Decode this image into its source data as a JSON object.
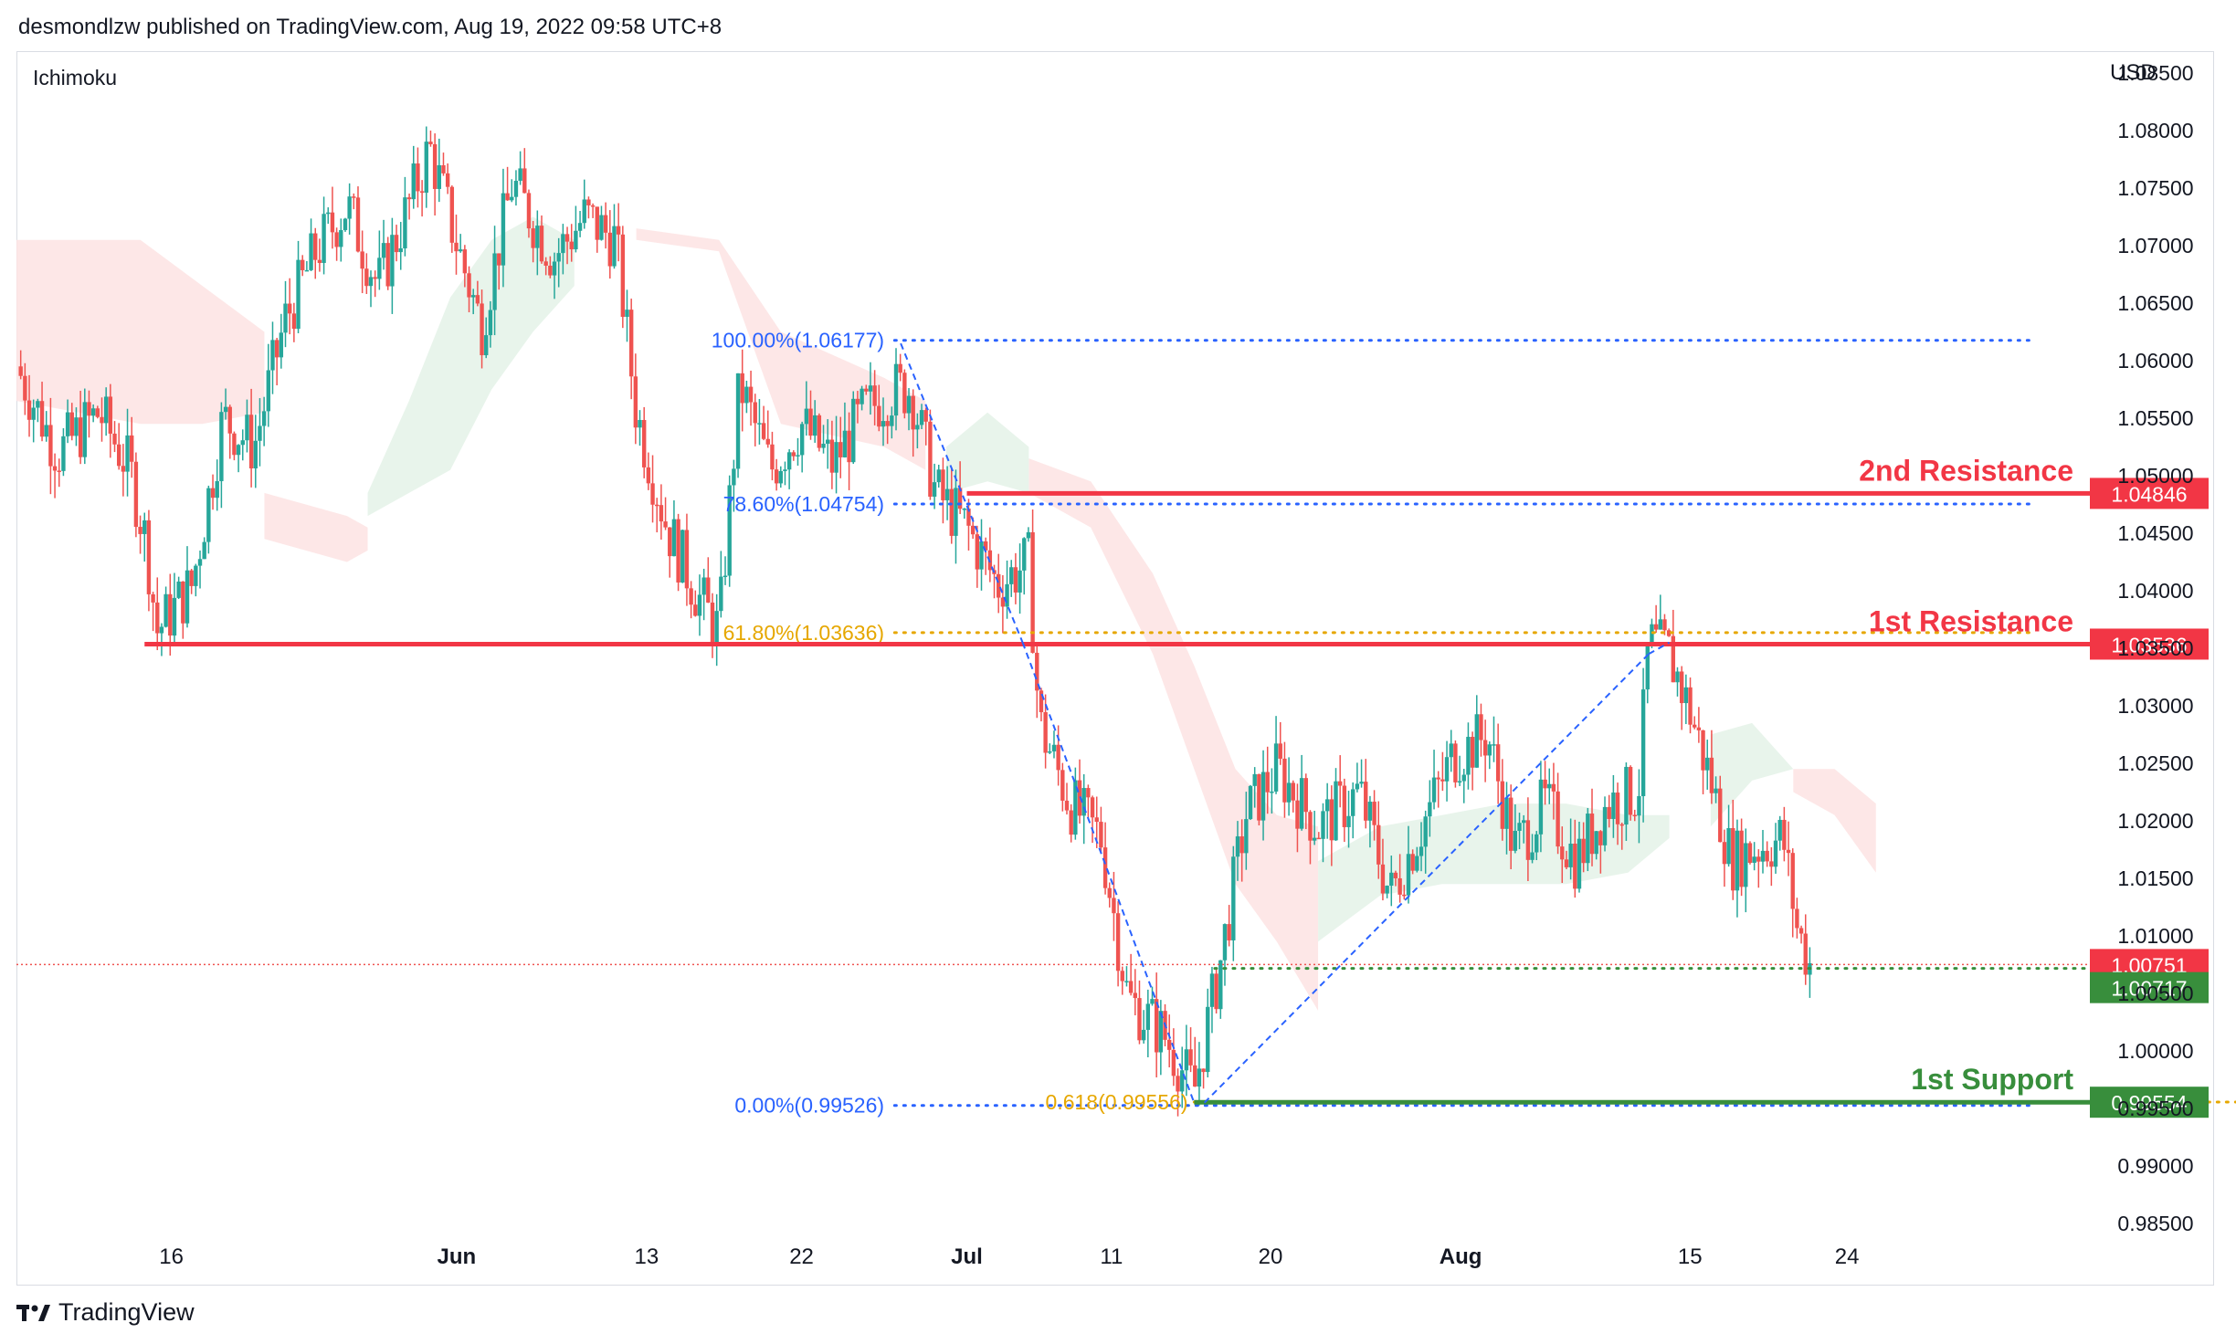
{
  "header": {
    "text": "desmondlzw published on TradingView.com, Aug 19, 2022 09:58 UTC+8"
  },
  "chart": {
    "indicator": "Ichimoku",
    "currency": "USD"
  },
  "footer": {
    "brand": "TradingView"
  },
  "colors": {
    "bull": "#26a69a",
    "bear": "#ef5350",
    "resistance": "#f23645",
    "support": "#388e3c",
    "fib_blue": "#2962ff",
    "fib_gold": "#e6a700",
    "cloud_bear": "#fde3e3",
    "cloud_bull": "#e4f2e7"
  },
  "chart_data": {
    "type": "candlestick",
    "symbol_note": "",
    "y_axis": {
      "ticks": [
        "1.08500",
        "1.08000",
        "1.07500",
        "1.07000",
        "1.06500",
        "1.06000",
        "1.05500",
        "1.05000",
        "1.04500",
        "1.04000",
        "1.03500",
        "1.03000",
        "1.02500",
        "1.02000",
        "1.01500",
        "1.01000",
        "1.00500",
        "1.00000",
        "0.99500",
        "0.99000",
        "0.98500"
      ],
      "range": [
        0.985,
        1.085
      ]
    },
    "x_axis": {
      "ticks": [
        {
          "label": "16",
          "bold": false,
          "pos": 0.075
        },
        {
          "label": "Jun",
          "bold": true,
          "pos": 0.213
        },
        {
          "label": "13",
          "bold": false,
          "pos": 0.305
        },
        {
          "label": "22",
          "bold": false,
          "pos": 0.38
        },
        {
          "label": "Jul",
          "bold": true,
          "pos": 0.46
        },
        {
          "label": "11",
          "bold": false,
          "pos": 0.53
        },
        {
          "label": "20",
          "bold": false,
          "pos": 0.607
        },
        {
          "label": "Aug",
          "bold": true,
          "pos": 0.699
        },
        {
          "label": "15",
          "bold": false,
          "pos": 0.81
        },
        {
          "label": "24",
          "bold": false,
          "pos": 0.886
        }
      ]
    },
    "price_path": [
      [
        0,
        1.0595
      ],
      [
        0.02,
        1.052
      ],
      [
        0.04,
        1.0555
      ],
      [
        0.055,
        1.0505
      ],
      [
        0.063,
        1.044
      ],
      [
        0.068,
        1.0365
      ],
      [
        0.085,
        1.0405
      ],
      [
        0.1,
        1.055
      ],
      [
        0.115,
        1.0525
      ],
      [
        0.13,
        1.0635
      ],
      [
        0.145,
        1.0695
      ],
      [
        0.16,
        1.0735
      ],
      [
        0.175,
        1.0665
      ],
      [
        0.19,
        1.0735
      ],
      [
        0.2,
        1.0785
      ],
      [
        0.215,
        1.069
      ],
      [
        0.225,
        1.063
      ],
      [
        0.24,
        1.0755
      ],
      [
        0.26,
        1.069
      ],
      [
        0.275,
        1.0725
      ],
      [
        0.29,
        1.0705
      ],
      [
        0.3,
        1.0555
      ],
      [
        0.315,
        1.0455
      ],
      [
        0.33,
        1.0395
      ],
      [
        0.34,
        1.0365
      ],
      [
        0.35,
        1.058
      ],
      [
        0.365,
        1.0505
      ],
      [
        0.38,
        1.0545
      ],
      [
        0.395,
        1.051
      ],
      [
        0.41,
        1.0555
      ],
      [
        0.425,
        1.0575
      ],
      [
        0.433,
        1.0575
      ],
      [
        0.445,
        1.0485
      ],
      [
        0.46,
        1.0455
      ],
      [
        0.475,
        1.0405
      ],
      [
        0.49,
        1.0425
      ],
      [
        0.495,
        1.0285
      ],
      [
        0.51,
        1.0215
      ],
      [
        0.525,
        1.0185
      ],
      [
        0.538,
        1.0045
      ],
      [
        0.555,
        1.0015
      ],
      [
        0.57,
        0.9965
      ],
      [
        0.583,
        1.008
      ],
      [
        0.595,
        1.0205
      ],
      [
        0.61,
        1.0245
      ],
      [
        0.63,
        1.0195
      ],
      [
        0.65,
        1.0225
      ],
      [
        0.665,
        1.0135
      ],
      [
        0.68,
        1.0195
      ],
      [
        0.695,
        1.0255
      ],
      [
        0.712,
        1.0275
      ],
      [
        0.725,
        1.0175
      ],
      [
        0.74,
        1.0215
      ],
      [
        0.755,
        1.0165
      ],
      [
        0.77,
        1.0215
      ],
      [
        0.785,
        1.0225
      ],
      [
        0.79,
        1.0355
      ],
      [
        0.8,
        1.0345
      ],
      [
        0.81,
        1.0295
      ],
      [
        0.82,
        1.0235
      ],
      [
        0.83,
        1.0165
      ],
      [
        0.84,
        1.0175
      ],
      [
        0.855,
        1.0185
      ],
      [
        0.862,
        1.0105
      ],
      [
        0.868,
        1.0075
      ]
    ],
    "cloud": {
      "bearish_segments": [
        {
          "x": [
            0,
            0.06,
            0.09,
            0.12
          ],
          "top": [
            1.0705,
            1.0705,
            1.0665,
            1.0625
          ],
          "bottom": [
            1.0565,
            1.0545,
            1.0545,
            1.0555
          ]
        },
        {
          "x": [
            0.12,
            0.16,
            0.17
          ],
          "top": [
            1.0485,
            1.0465,
            1.0455
          ],
          "bottom": [
            1.0445,
            1.0425,
            1.0435
          ]
        },
        {
          "x": [
            0.3,
            0.34,
            0.37,
            0.42,
            0.44
          ],
          "top": [
            1.0715,
            1.0705,
            1.0625,
            1.0585,
            1.0565
          ],
          "bottom": [
            1.0705,
            1.0695,
            1.0545,
            1.0525,
            1.0505
          ]
        },
        {
          "x": [
            0.49,
            0.52,
            0.55,
            0.57,
            0.59,
            0.61,
            0.63
          ],
          "top": [
            1.0515,
            1.0495,
            1.0415,
            1.0335,
            1.0245,
            1.0205,
            1.0195
          ],
          "bottom": [
            1.0485,
            1.0455,
            1.0345,
            1.0245,
            1.0145,
            1.0095,
            1.0035
          ]
        },
        {
          "x": [
            0.86,
            0.88,
            0.9
          ],
          "top": [
            1.0245,
            1.0245,
            1.0215
          ],
          "bottom": [
            1.0225,
            1.0205,
            1.0155
          ]
        }
      ],
      "bullish_segments": [
        {
          "x": [
            0.17,
            0.19,
            0.21,
            0.23,
            0.25,
            0.27
          ],
          "top": [
            1.0485,
            1.0565,
            1.0655,
            1.0705,
            1.0725,
            1.0705
          ],
          "bottom": [
            1.0465,
            1.0485,
            1.0505,
            1.0575,
            1.0625,
            1.0665
          ]
        },
        {
          "x": [
            0.45,
            0.47,
            0.49
          ],
          "top": [
            1.0525,
            1.0555,
            1.0525
          ],
          "bottom": [
            1.0485,
            1.0495,
            1.0485
          ]
        },
        {
          "x": [
            0.63,
            0.66,
            0.69,
            0.72,
            0.75,
            0.78,
            0.8
          ],
          "top": [
            1.0165,
            1.0195,
            1.0205,
            1.0215,
            1.0215,
            1.0205,
            1.0205
          ],
          "bottom": [
            1.0095,
            1.0135,
            1.0145,
            1.0145,
            1.0145,
            1.0155,
            1.0185
          ]
        },
        {
          "x": [
            0.82,
            0.84,
            0.86
          ],
          "top": [
            1.0275,
            1.0285,
            1.0245
          ],
          "bottom": [
            1.0195,
            1.0235,
            1.0245
          ]
        }
      ]
    },
    "fib_levels": [
      {
        "label": "100.00%(1.06177)",
        "value": 1.06177,
        "color": "blue",
        "start": 0.425,
        "label_pos": 0.42
      },
      {
        "label": "78.60%(1.04754)",
        "value": 1.04754,
        "color": "blue",
        "start": 0.425,
        "label_pos": 0.42
      },
      {
        "label": "61.80%(1.03636)",
        "value": 1.03636,
        "color": "gold",
        "start": 0.425,
        "label_pos": 0.42
      },
      {
        "label": "0.00%(0.99526)",
        "value": 0.99526,
        "color": "blue",
        "start": 0.425,
        "label_pos": 0.42
      },
      {
        "label": "0.618(0.99556)",
        "value": 0.99556,
        "color": "gold",
        "start": 0.57,
        "label_pos": 0.567
      }
    ],
    "levels": [
      {
        "name": "2nd Resistance",
        "value": 1.04846,
        "label": "1.04846",
        "kind": "resistance",
        "start": 0.46
      },
      {
        "name": "1st Resistance",
        "value": 1.03536,
        "label": "1.03536",
        "kind": "resistance",
        "start": 0.062
      },
      {
        "name": "1st Support",
        "value": 0.99554,
        "label": "0.99554",
        "kind": "support",
        "start": 0.57
      }
    ],
    "current_price": {
      "value": 1.00751,
      "label": "1.00751"
    },
    "support_dotted": {
      "value": 1.00717,
      "label": "1.00717",
      "start": 0.58
    },
    "trend_lines": [
      {
        "from": [
          0.428,
          1.0615
        ],
        "to": [
          0.487,
          1.0355
        ]
      },
      {
        "from": [
          0.487,
          1.0355
        ],
        "to": [
          0.57,
          0.9955
        ]
      },
      {
        "from": [
          0.575,
          0.9955
        ],
        "to": [
          0.79,
          1.0345
        ]
      },
      {
        "from": [
          0.79,
          1.0345
        ],
        "to": [
          0.8,
          1.0355
        ]
      }
    ]
  }
}
